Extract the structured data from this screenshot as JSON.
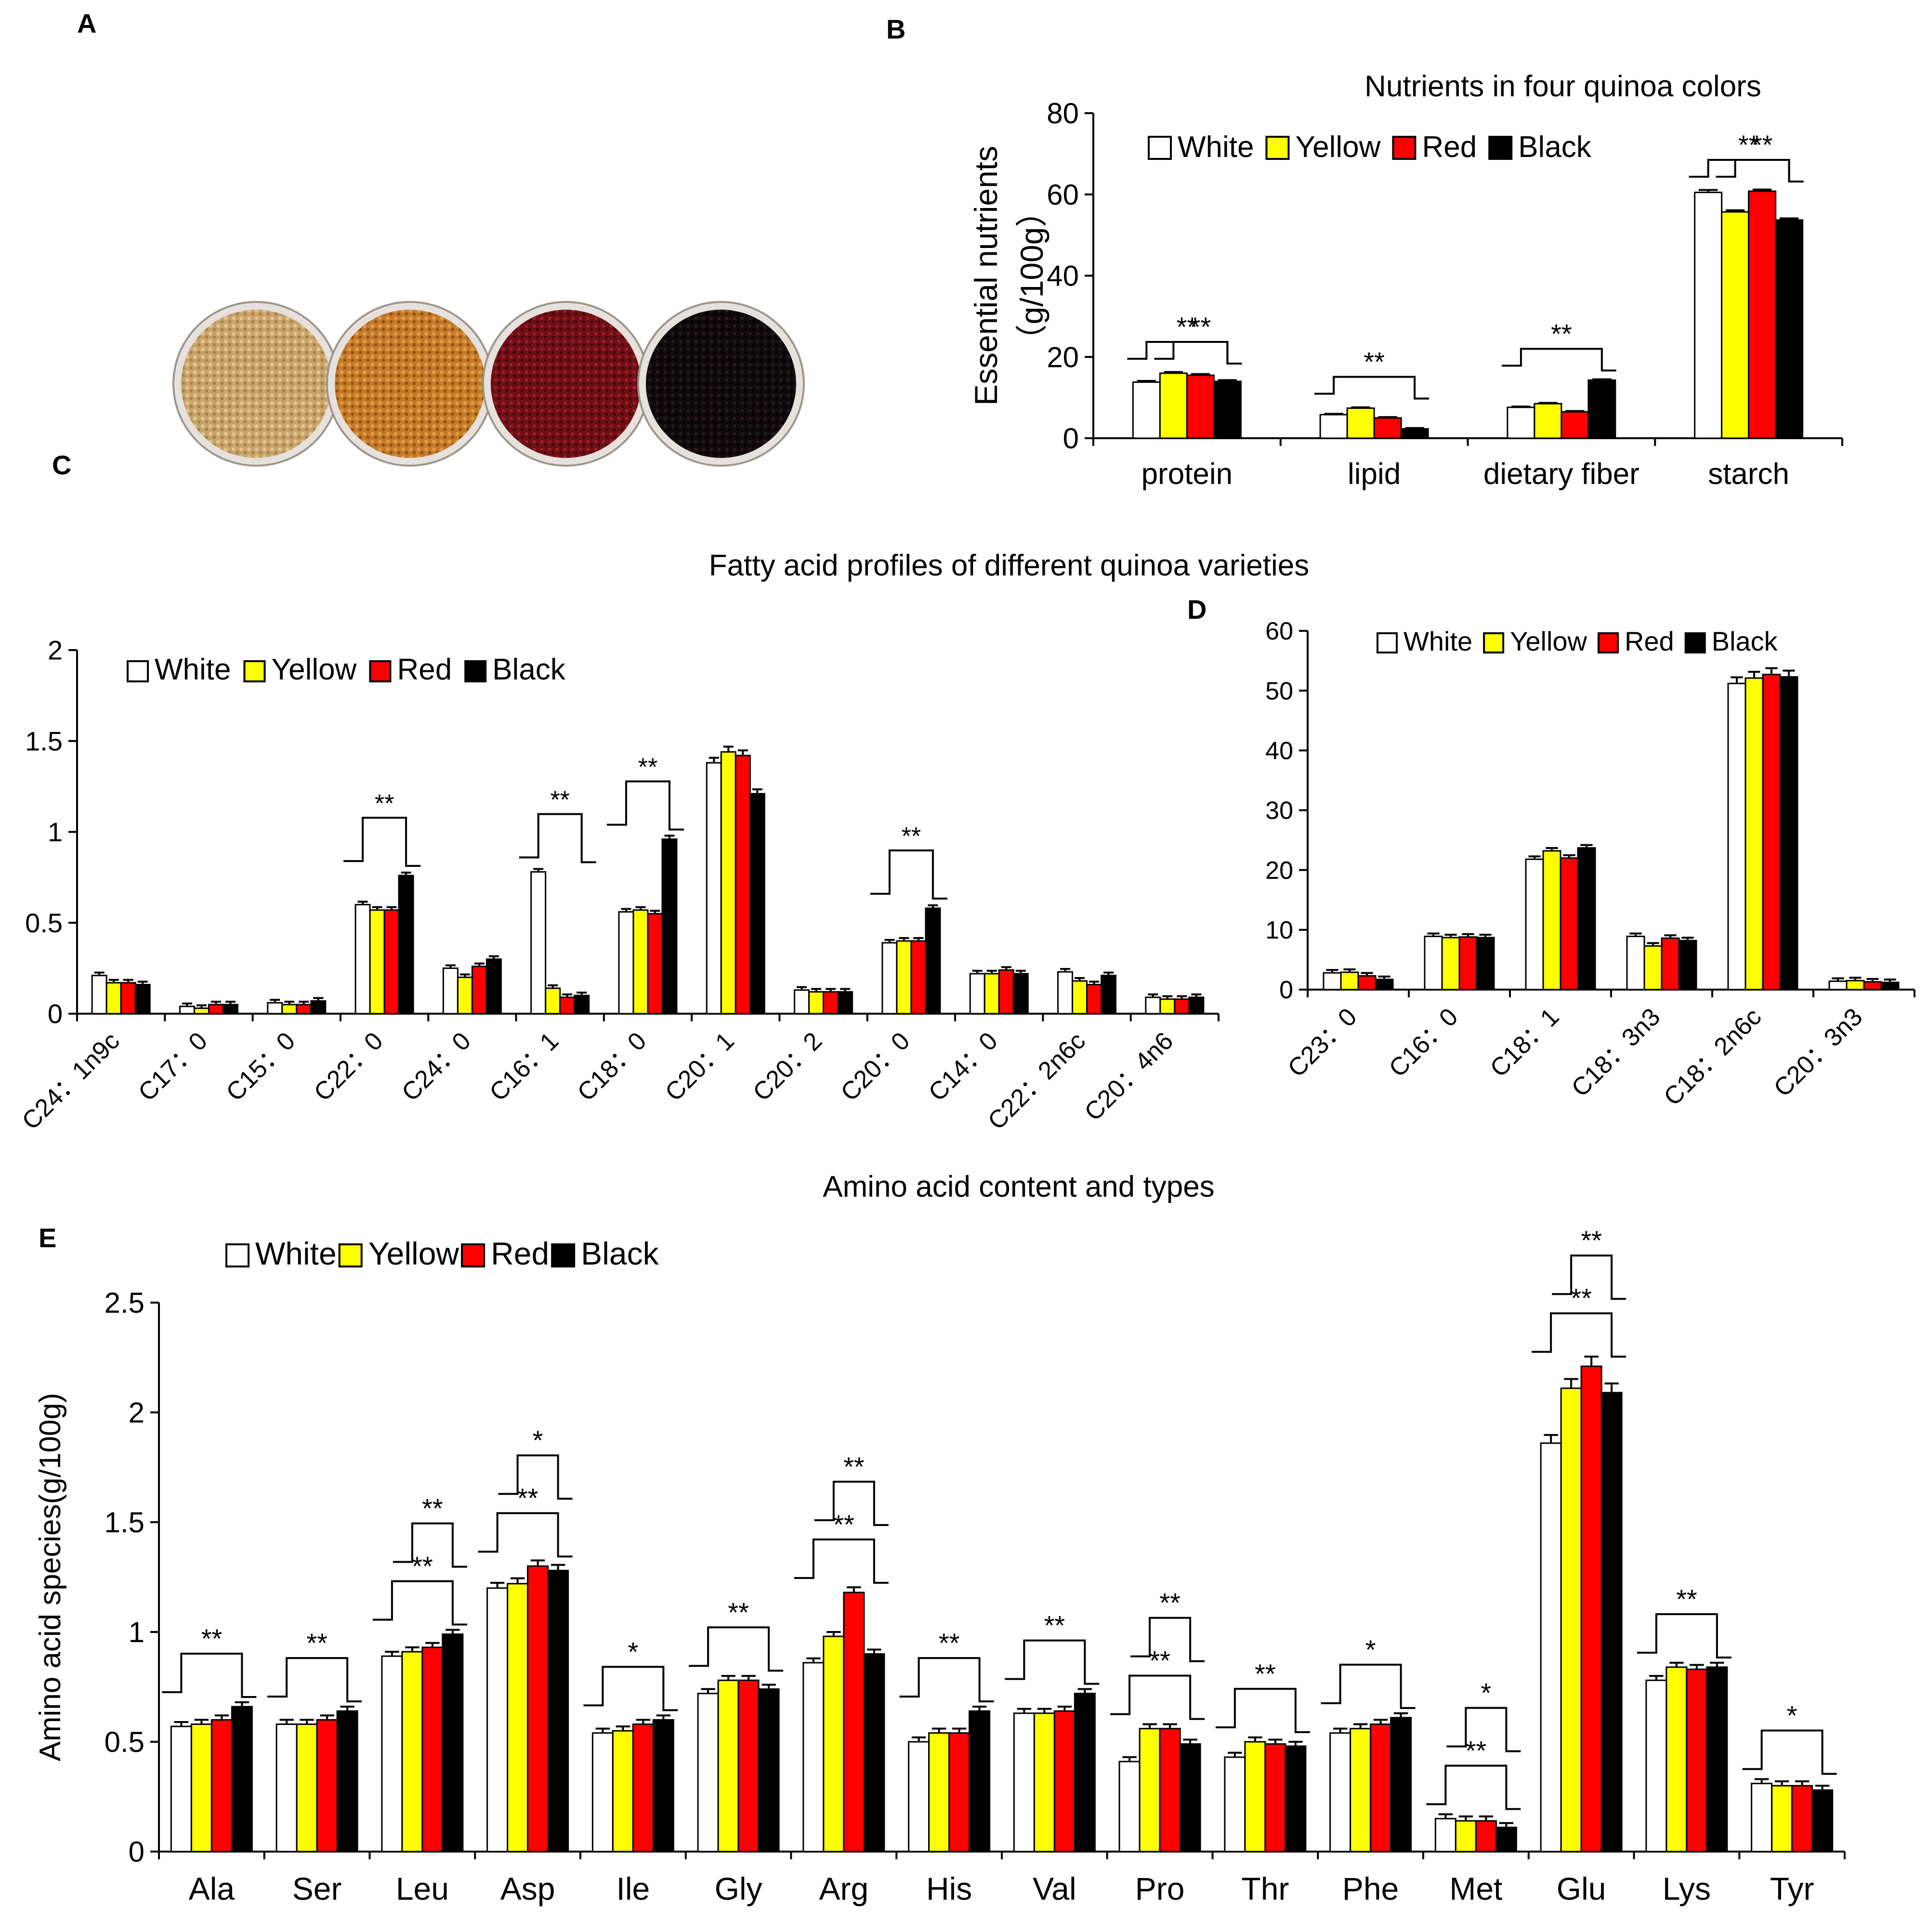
{
  "colors": {
    "White": "#ffffff",
    "Yellow": "#ffff00",
    "Red": "#ff0000",
    "Black": "#000000"
  },
  "panels": {
    "A": "A",
    "B": "B",
    "C": "C",
    "D": "D",
    "E": "E"
  },
  "photo": {
    "seed_colors": [
      "#c8a36a",
      "#c47a28",
      "#6e1016",
      "#120a0d"
    ],
    "dish_color": "#e6e1dc"
  },
  "chart_data": [
    {
      "id": "B",
      "type": "bar",
      "title": "Nutrients in four quinoa colors",
      "ylabel": "Essential nutrients\n（g/100g）",
      "xlabel": "",
      "ylim": [
        0,
        80
      ],
      "yticks": [
        0,
        20,
        40,
        60,
        80
      ],
      "categories": [
        "protein",
        "lipid",
        "dietary fiber",
        "starch"
      ],
      "series": [
        {
          "name": "White",
          "values": [
            13.8,
            5.8,
            7.6,
            60.5
          ],
          "errors": [
            0.3,
            0.2,
            0.2,
            0.6
          ]
        },
        {
          "name": "Yellow",
          "values": [
            16.0,
            7.4,
            8.5,
            55.7
          ],
          "errors": [
            0.3,
            0.2,
            0.2,
            0.4
          ]
        },
        {
          "name": "Red",
          "values": [
            15.5,
            5.0,
            6.5,
            60.8
          ],
          "errors": [
            0.3,
            0.2,
            0.2,
            0.4
          ]
        },
        {
          "name": "Black",
          "values": [
            14.0,
            2.3,
            14.3,
            53.7
          ],
          "errors": [
            0.3,
            0.2,
            0.2,
            0.4
          ]
        }
      ],
      "significance": [
        {
          "label": "**",
          "category": "protein"
        },
        {
          "label": "**",
          "category": "protein"
        },
        {
          "label": "**",
          "category": "lipid"
        },
        {
          "label": "**",
          "category": "dietary fiber"
        },
        {
          "label": "**",
          "category": "starch"
        },
        {
          "label": "**",
          "category": "starch"
        }
      ]
    },
    {
      "id": "C",
      "type": "bar",
      "title": "Fatty acid profiles of different quinoa varieties",
      "xlabel": "",
      "ylabel": "",
      "ylim": [
        0,
        2
      ],
      "yticks": [
        0,
        0.5,
        1,
        1.5,
        2
      ],
      "ytick_labels": [
        "0",
        "0.5",
        "1",
        "1.5",
        "2"
      ],
      "categories": [
        "C24：1n9c",
        "C17：0",
        "C15：0",
        "C22：0",
        "C24：0",
        "C16：1",
        "C18：0",
        "C20：1",
        "C20：2",
        "C20：0",
        "C14：0",
        "C22：2n6c",
        "C20：4n6"
      ],
      "series": [
        {
          "name": "White",
          "values": [
            0.21,
            0.04,
            0.06,
            0.6,
            0.25,
            0.78,
            0.56,
            1.38,
            0.13,
            0.39,
            0.22,
            0.23,
            0.09
          ]
        },
        {
          "name": "Yellow",
          "values": [
            0.17,
            0.03,
            0.05,
            0.57,
            0.2,
            0.14,
            0.57,
            1.44,
            0.12,
            0.4,
            0.22,
            0.18,
            0.08
          ]
        },
        {
          "name": "Red",
          "values": [
            0.17,
            0.05,
            0.05,
            0.57,
            0.26,
            0.09,
            0.55,
            1.42,
            0.12,
            0.4,
            0.24,
            0.16,
            0.08
          ]
        },
        {
          "name": "Black",
          "values": [
            0.16,
            0.05,
            0.07,
            0.76,
            0.3,
            0.1,
            0.96,
            1.21,
            0.12,
            0.58,
            0.22,
            0.21,
            0.09
          ]
        }
      ],
      "significance": [
        {
          "label": "**",
          "category": "C22：0"
        },
        {
          "label": "**",
          "category": "C16：1"
        },
        {
          "label": "**",
          "category": "C18：0"
        },
        {
          "label": "**",
          "category": "C20：0"
        }
      ]
    },
    {
      "id": "D",
      "type": "bar",
      "title": "",
      "xlabel": "",
      "ylabel": "",
      "ylim": [
        0,
        60
      ],
      "yticks": [
        0,
        10,
        20,
        30,
        40,
        50,
        60
      ],
      "categories": [
        "C23：0",
        "C16：0",
        "C18：1",
        "C18：3n3",
        "C18：2n6c",
        "C20：3n3"
      ],
      "series": [
        {
          "name": "White",
          "values": [
            2.8,
            8.9,
            21.8,
            8.9,
            51.2,
            1.4
          ]
        },
        {
          "name": "Yellow",
          "values": [
            2.9,
            8.7,
            23.2,
            7.3,
            52.1,
            1.5
          ]
        },
        {
          "name": "Red",
          "values": [
            2.3,
            8.8,
            22.0,
            8.6,
            52.7,
            1.3
          ]
        },
        {
          "name": "Black",
          "values": [
            1.7,
            8.7,
            23.7,
            8.2,
            52.3,
            1.2
          ]
        }
      ],
      "significance": []
    },
    {
      "id": "E",
      "type": "bar",
      "title": "Amino acid content and types",
      "ylabel": "Amino acid species(g/100g)",
      "xlabel": "",
      "ylim": [
        0,
        2.5
      ],
      "yticks": [
        0,
        0.5,
        1,
        1.5,
        2,
        2.5
      ],
      "ytick_labels": [
        "0",
        "0.5",
        "1",
        "1.5",
        "2",
        "2.5"
      ],
      "categories": [
        "Ala",
        "Ser",
        "Leu",
        "Asp",
        "Ile",
        "Gly",
        "Arg",
        "His",
        "Val",
        "Pro",
        "Thr",
        "Phe",
        "Met",
        "Glu",
        "Lys",
        "Tyr"
      ],
      "series": [
        {
          "name": "White",
          "values": [
            0.57,
            0.58,
            0.89,
            1.2,
            0.54,
            0.72,
            0.86,
            0.5,
            0.63,
            0.41,
            0.43,
            0.54,
            0.15,
            1.86,
            0.78,
            0.31
          ]
        },
        {
          "name": "Yellow",
          "values": [
            0.58,
            0.58,
            0.91,
            1.22,
            0.55,
            0.78,
            0.98,
            0.54,
            0.63,
            0.56,
            0.5,
            0.56,
            0.14,
            2.11,
            0.84,
            0.3
          ]
        },
        {
          "name": "Red",
          "values": [
            0.6,
            0.6,
            0.93,
            1.3,
            0.58,
            0.78,
            1.18,
            0.54,
            0.64,
            0.56,
            0.49,
            0.58,
            0.14,
            2.21,
            0.83,
            0.3
          ]
        },
        {
          "name": "Black",
          "values": [
            0.66,
            0.64,
            0.99,
            1.28,
            0.6,
            0.74,
            0.9,
            0.64,
            0.72,
            0.49,
            0.48,
            0.61,
            0.11,
            2.09,
            0.84,
            0.28
          ]
        }
      ],
      "significance": [
        {
          "label": "**",
          "category": "Ala"
        },
        {
          "label": "**",
          "category": "Ser"
        },
        {
          "label": "**",
          "category": "Leu"
        },
        {
          "label": "**",
          "category": "Leu"
        },
        {
          "label": "**",
          "category": "Asp"
        },
        {
          "label": "*",
          "category": "Asp"
        },
        {
          "label": "*",
          "category": "Ile"
        },
        {
          "label": "**",
          "category": "Gly"
        },
        {
          "label": "**",
          "category": "Arg"
        },
        {
          "label": "**",
          "category": "Arg"
        },
        {
          "label": "**",
          "category": "His"
        },
        {
          "label": "**",
          "category": "Val"
        },
        {
          "label": "**",
          "category": "Pro"
        },
        {
          "label": "**",
          "category": "Pro"
        },
        {
          "label": "**",
          "category": "Thr"
        },
        {
          "label": "*",
          "category": "Phe"
        },
        {
          "label": "**",
          "category": "Met"
        },
        {
          "label": "*",
          "category": "Met"
        },
        {
          "label": "**",
          "category": "Glu"
        },
        {
          "label": "**",
          "category": "Glu"
        },
        {
          "label": "**",
          "category": "Lys"
        },
        {
          "label": "*",
          "category": "Tyr"
        }
      ]
    }
  ]
}
